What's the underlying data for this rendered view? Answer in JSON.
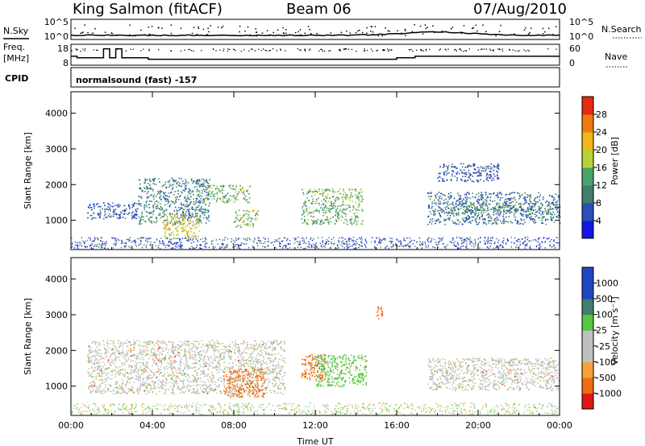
{
  "header": {
    "station": "King Salmon (fitACF)",
    "beam": "Beam 06",
    "date": "07/Aug/2010"
  },
  "top_panels": {
    "nsky_label": "N.Sky",
    "nsky_ticks": [
      "10^5",
      "10^0"
    ],
    "nsearch_label": "N.Search",
    "nsearch_ticks": [
      "10^5",
      "10^0"
    ],
    "freq_label_1": "Freq.",
    "freq_label_2": "[MHz]",
    "freq_ticks": [
      "18",
      "8"
    ],
    "nave_label": "Nave",
    "nave_ticks": [
      "60",
      "0"
    ],
    "cpid_label": "CPID",
    "cpid_text": "normalsound (fast) -157"
  },
  "power_scale": {
    "label": "Power [dB]",
    "ticks": [
      "28",
      "24",
      "20",
      "16",
      "12",
      "8",
      "4"
    ]
  },
  "velocity_scale": {
    "label": "Velocity [m s⁻¹]",
    "ticks": [
      "1000",
      "500",
      "100",
      "25",
      "-25",
      "-100",
      "-500",
      "-1000"
    ]
  },
  "chart_data": [
    {
      "type": "heatmap",
      "title": "Power",
      "ylabel": "Slant Range [km]",
      "xlabel": "Time UT",
      "x_ticks": [
        "00:00",
        "04:00",
        "08:00",
        "12:00",
        "16:00",
        "20:00",
        "00:00"
      ],
      "y_ticks": [
        "1000",
        "2000",
        "3000",
        "4000"
      ],
      "xlim_hours": [
        0,
        24
      ],
      "ylim_km": [
        180,
        4600
      ],
      "colorbar": {
        "label": "Power [dB]",
        "ticks": [
          28,
          24,
          20,
          16,
          12,
          8,
          4
        ]
      },
      "regions": [
        {
          "t_start": 0.8,
          "t_end": 3.3,
          "range_km": [
            1050,
            1500
          ],
          "power_db": 6
        },
        {
          "t_start": 3.3,
          "t_end": 6.8,
          "range_km": [
            900,
            2200
          ],
          "power_db": 10
        },
        {
          "t_start": 4.5,
          "t_end": 6.3,
          "range_km": [
            500,
            1200
          ],
          "power_db": 20
        },
        {
          "t_start": 6.5,
          "t_end": 8.8,
          "range_km": [
            1500,
            2000
          ],
          "power_db": 14
        },
        {
          "t_start": 8.0,
          "t_end": 9.2,
          "range_km": [
            800,
            1300
          ],
          "power_db": 16
        },
        {
          "t_start": 11.3,
          "t_end": 14.3,
          "range_km": [
            900,
            1900
          ],
          "power_db": 14
        },
        {
          "t_start": 17.5,
          "t_end": 24.0,
          "range_km": [
            900,
            1800
          ],
          "power_db": 8
        },
        {
          "t_start": 18.5,
          "t_end": 24.0,
          "range_km": [
            1200,
            1500
          ],
          "power_db": 12
        },
        {
          "t_start": 18.0,
          "t_end": 21.0,
          "range_km": [
            2100,
            2600
          ],
          "power_db": 6
        }
      ]
    },
    {
      "type": "heatmap",
      "title": "Velocity",
      "ylabel": "Slant Range [km]",
      "xlabel": "Time UT",
      "x_ticks": [
        "00:00",
        "04:00",
        "08:00",
        "12:00",
        "16:00",
        "20:00",
        "00:00"
      ],
      "y_ticks": [
        "1000",
        "2000",
        "3000",
        "4000"
      ],
      "xlim_hours": [
        0,
        24
      ],
      "ylim_km": [
        180,
        4600
      ],
      "colorbar": {
        "label": "Velocity [m s⁻¹]",
        "ticks": [
          1000,
          500,
          100,
          25,
          -25,
          -100,
          -500,
          -1000
        ]
      },
      "regions": [
        {
          "t_start": 0.8,
          "t_end": 10.5,
          "range_km": [
            800,
            2300
          ],
          "velocity_ms": 0
        },
        {
          "t_start": 7.5,
          "t_end": 9.5,
          "range_km": [
            700,
            1500
          ],
          "velocity_ms": -300
        },
        {
          "t_start": 11.3,
          "t_end": 12.5,
          "range_km": [
            1200,
            1900
          ],
          "velocity_ms": -150
        },
        {
          "t_start": 12.0,
          "t_end": 14.5,
          "range_km": [
            1000,
            1900
          ],
          "velocity_ms": 150
        },
        {
          "t_start": 17.5,
          "t_end": 24.0,
          "range_km": [
            900,
            1800
          ],
          "velocity_ms": 0
        },
        {
          "t_start": 15.0,
          "t_end": 15.3,
          "range_km": [
            2900,
            3300
          ],
          "velocity_ms": -300
        }
      ]
    }
  ]
}
